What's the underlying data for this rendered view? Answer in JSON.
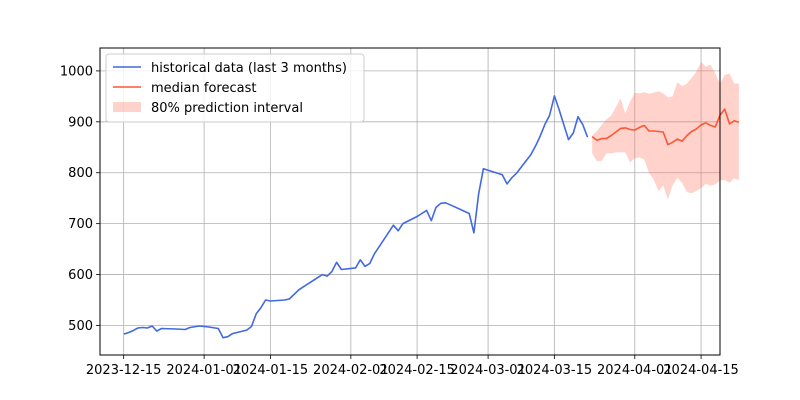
{
  "chart_data": {
    "type": "line",
    "title": "",
    "xlabel": "",
    "ylabel": "",
    "grid": true,
    "legend_position": "top-left",
    "ylim": [
      442,
      1045
    ],
    "xlim": [
      "2023-12-10",
      "2024-04-19"
    ],
    "x_ticks": [
      "2023-12-15",
      "2024-01-01",
      "2024-01-15",
      "2024-02-01",
      "2024-02-15",
      "2024-03-01",
      "2024-03-15",
      "2024-04-01",
      "2024-04-15"
    ],
    "y_ticks": [
      500,
      600,
      700,
      800,
      900,
      1000
    ],
    "series": [
      {
        "name": "historical data (last 3 months)",
        "kind": "line",
        "color": "#4169e1",
        "points": [
          [
            "2023-12-15",
            483
          ],
          [
            "2023-12-16",
            486
          ],
          [
            "2023-12-17",
            490
          ],
          [
            "2023-12-18",
            495
          ],
          [
            "2023-12-19",
            496
          ],
          [
            "2023-12-20",
            495
          ],
          [
            "2023-12-21",
            499
          ],
          [
            "2023-12-22",
            489
          ],
          [
            "2023-12-23",
            494
          ],
          [
            "2023-12-26",
            493
          ],
          [
            "2023-12-28",
            492
          ],
          [
            "2023-12-29",
            496
          ],
          [
            "2023-12-31",
            499
          ],
          [
            "2024-01-02",
            497
          ],
          [
            "2024-01-04",
            494
          ],
          [
            "2024-01-05",
            476
          ],
          [
            "2024-01-06",
            478
          ],
          [
            "2024-01-07",
            484
          ],
          [
            "2024-01-10",
            491
          ],
          [
            "2024-01-11",
            498
          ],
          [
            "2024-01-12",
            523
          ],
          [
            "2024-01-13",
            535
          ],
          [
            "2024-01-14",
            550
          ],
          [
            "2024-01-15",
            548
          ],
          [
            "2024-01-18",
            550
          ],
          [
            "2024-01-19",
            552
          ],
          [
            "2024-01-21",
            570
          ],
          [
            "2024-01-23",
            582
          ],
          [
            "2024-01-26",
            600
          ],
          [
            "2024-01-27",
            597
          ],
          [
            "2024-01-28",
            606
          ],
          [
            "2024-01-29",
            624
          ],
          [
            "2024-01-30",
            610
          ],
          [
            "2024-02-02",
            613
          ],
          [
            "2024-02-03",
            629
          ],
          [
            "2024-02-04",
            616
          ],
          [
            "2024-02-05",
            622
          ],
          [
            "2024-02-06",
            641
          ],
          [
            "2024-02-10",
            697
          ],
          [
            "2024-02-11",
            686
          ],
          [
            "2024-02-12",
            700
          ],
          [
            "2024-02-15",
            714
          ],
          [
            "2024-02-17",
            726
          ],
          [
            "2024-02-18",
            706
          ],
          [
            "2024-02-19",
            732
          ],
          [
            "2024-02-20",
            740
          ],
          [
            "2024-02-21",
            741
          ],
          [
            "2024-02-22",
            737
          ],
          [
            "2024-02-26",
            720
          ],
          [
            "2024-02-27",
            682
          ],
          [
            "2024-02-28",
            758
          ],
          [
            "2024-02-29",
            808
          ],
          [
            "2024-03-04",
            796
          ],
          [
            "2024-03-05",
            778
          ],
          [
            "2024-03-06",
            790
          ],
          [
            "2024-03-07",
            799
          ],
          [
            "2024-03-10",
            835
          ],
          [
            "2024-03-11",
            852
          ],
          [
            "2024-03-12",
            872
          ],
          [
            "2024-03-13",
            895
          ],
          [
            "2024-03-14",
            913
          ],
          [
            "2024-03-15",
            951
          ],
          [
            "2024-03-16",
            924
          ],
          [
            "2024-03-18",
            865
          ],
          [
            "2024-03-19",
            878
          ],
          [
            "2024-03-20",
            910
          ],
          [
            "2024-03-21",
            895
          ],
          [
            "2024-03-22",
            870
          ]
        ]
      },
      {
        "name": "median forecast",
        "kind": "line",
        "color": "#ff5733",
        "points": [
          [
            "2024-03-23",
            871
          ],
          [
            "2024-03-24",
            864
          ],
          [
            "2024-03-25",
            867
          ],
          [
            "2024-03-26",
            867
          ],
          [
            "2024-03-27",
            873
          ],
          [
            "2024-03-28",
            880
          ],
          [
            "2024-03-29",
            887
          ],
          [
            "2024-03-30",
            888
          ],
          [
            "2024-03-31",
            885
          ],
          [
            "2024-04-01",
            884
          ],
          [
            "2024-04-02",
            889
          ],
          [
            "2024-04-03",
            893
          ],
          [
            "2024-04-04",
            882
          ],
          [
            "2024-04-05",
            882
          ],
          [
            "2024-04-06",
            881
          ],
          [
            "2024-04-07",
            880
          ],
          [
            "2024-04-08",
            855
          ],
          [
            "2024-04-09",
            860
          ],
          [
            "2024-04-10",
            866
          ],
          [
            "2024-04-11",
            862
          ],
          [
            "2024-04-12",
            873
          ],
          [
            "2024-04-13",
            881
          ],
          [
            "2024-04-14",
            886
          ],
          [
            "2024-04-15",
            894
          ],
          [
            "2024-04-16",
            898
          ],
          [
            "2024-04-17",
            893
          ],
          [
            "2024-04-18",
            890
          ],
          [
            "2024-04-19",
            913
          ],
          [
            "2024-04-20",
            925
          ],
          [
            "2024-04-21",
            896
          ],
          [
            "2024-04-22",
            902
          ],
          [
            "2024-04-23",
            899
          ]
        ]
      }
    ],
    "band": {
      "name": "80% prediction interval",
      "kind": "band",
      "color": "#ff7f6a",
      "opacity": 0.35,
      "points": [
        [
          "2024-03-23",
          838,
          873
        ],
        [
          "2024-03-24",
          823,
          882
        ],
        [
          "2024-03-25",
          823,
          894
        ],
        [
          "2024-03-26",
          838,
          905
        ],
        [
          "2024-03-27",
          838,
          912
        ],
        [
          "2024-03-28",
          840,
          929
        ],
        [
          "2024-03-29",
          840,
          946
        ],
        [
          "2024-03-30",
          840,
          916
        ],
        [
          "2024-03-31",
          820,
          940
        ],
        [
          "2024-04-01",
          829,
          957
        ],
        [
          "2024-04-02",
          830,
          956
        ],
        [
          "2024-04-03",
          826,
          958
        ],
        [
          "2024-04-04",
          800,
          955
        ],
        [
          "2024-04-05",
          787,
          957
        ],
        [
          "2024-04-06",
          764,
          960
        ],
        [
          "2024-04-07",
          775,
          956
        ],
        [
          "2024-04-08",
          748,
          948
        ],
        [
          "2024-04-09",
          776,
          950
        ],
        [
          "2024-04-10",
          790,
          978
        ],
        [
          "2024-04-11",
          780,
          970
        ],
        [
          "2024-04-12",
          762,
          975
        ],
        [
          "2024-04-13",
          760,
          986
        ],
        [
          "2024-04-14",
          764,
          998
        ],
        [
          "2024-04-15",
          770,
          1018
        ],
        [
          "2024-04-16",
          778,
          1008
        ],
        [
          "2024-04-17",
          775,
          1012
        ],
        [
          "2024-04-18",
          777,
          995
        ],
        [
          "2024-04-19",
          785,
          974
        ],
        [
          "2024-04-20",
          786,
          992
        ],
        [
          "2024-04-21",
          780,
          995
        ],
        [
          "2024-04-22",
          789,
          975
        ],
        [
          "2024-04-23",
          785,
          975
        ]
      ]
    }
  }
}
